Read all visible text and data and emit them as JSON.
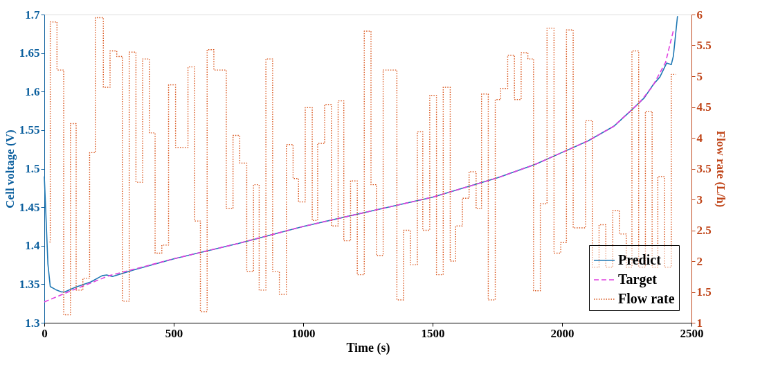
{
  "chart_data": {
    "type": "line",
    "xlabel": "Time (s)",
    "ylabel": "Cell voltage (V)",
    "y2label": "Flow rate (L/h)",
    "xlim": [
      0,
      2500
    ],
    "xticks": [
      0,
      500,
      1000,
      1500,
      2000,
      2500
    ],
    "ylim": [
      1.3,
      1.7
    ],
    "yticks": [
      1.3,
      1.35,
      1.4,
      1.45,
      1.5,
      1.55,
      1.6,
      1.65,
      1.7
    ],
    "y2lim": [
      1,
      6
    ],
    "y2ticks": [
      1,
      1.5,
      2,
      2.5,
      3,
      3.5,
      4,
      4.5,
      5,
      5.5,
      6
    ],
    "grid": false,
    "legend": "bottom right",
    "series": [
      {
        "name": "Predict",
        "line_style": "solid",
        "color": "#1f78b4",
        "x": [
          0,
          5,
          14,
          23,
          44,
          66,
          79,
          120,
          180,
          223,
          241,
          263,
          350,
          500,
          750,
          1000,
          1250,
          1500,
          1750,
          1900,
          2000,
          2100,
          2200,
          2265,
          2318,
          2352,
          2378,
          2404,
          2422,
          2430,
          2446
        ],
        "values": [
          1.49,
          1.45,
          1.376,
          1.347,
          1.343,
          1.34,
          1.34,
          1.346,
          1.353,
          1.361,
          1.362,
          1.36,
          1.369,
          1.383,
          1.403,
          1.425,
          1.444,
          1.463,
          1.488,
          1.506,
          1.521,
          1.536,
          1.555,
          1.575,
          1.592,
          1.609,
          1.619,
          1.637,
          1.635,
          1.646,
          1.698
        ]
      },
      {
        "name": "Target",
        "line_style": "dashed",
        "color": "#e040e0",
        "x": [
          0,
          100,
          250,
          500,
          750,
          1000,
          1250,
          1500,
          1750,
          1900,
          2000,
          2100,
          2200,
          2300,
          2350,
          2400,
          2430
        ],
        "values": [
          1.327,
          1.341,
          1.361,
          1.383,
          1.403,
          1.425,
          1.444,
          1.463,
          1.488,
          1.506,
          1.521,
          1.536,
          1.555,
          1.586,
          1.607,
          1.638,
          1.679
        ]
      },
      {
        "name": "Flow rate",
        "type": "step",
        "axis": "y2",
        "line_style": "dotted",
        "color": "#d95319",
        "x": [
          20,
          23,
          49,
          75,
          101,
          123,
          149,
          175,
          197,
          228,
          254,
          280,
          302,
          328,
          354,
          380,
          406,
          428,
          454,
          480,
          507,
          555,
          581,
          603,
          629,
          655,
          703,
          729,
          755,
          782,
          808,
          830,
          856,
          882,
          908,
          935,
          961,
          982,
          1008,
          1035,
          1056,
          1083,
          1109,
          1135,
          1157,
          1183,
          1209,
          1236,
          1262,
          1283,
          1309,
          1362,
          1388,
          1414,
          1441,
          1462,
          1489,
          1515,
          1541,
          1568,
          1589,
          1615,
          1641,
          1668,
          1689,
          1715,
          1742,
          1763,
          1790,
          1816,
          1842,
          1868,
          1890,
          1916,
          1942,
          1969,
          1995,
          2017,
          2043,
          2091,
          2117,
          2143,
          2169,
          2196,
          2222,
          2248,
          2270,
          2296,
          2322,
          2348,
          2370,
          2396,
          2422,
          2440
        ],
        "values": [
          2.31,
          5.88,
          5.1,
          1.13,
          4.23,
          1.53,
          1.72,
          3.76,
          5.95,
          4.82,
          5.41,
          5.32,
          1.35,
          5.39,
          3.28,
          5.28,
          4.08,
          2.13,
          2.26,
          4.86,
          3.84,
          5.15,
          2.65,
          1.18,
          5.43,
          5.1,
          2.85,
          4.04,
          3.59,
          1.83,
          3.24,
          1.53,
          5.28,
          1.83,
          1.46,
          3.89,
          3.34,
          2.96,
          4.49,
          2.66,
          3.91,
          4.54,
          2.57,
          4.6,
          2.33,
          3.3,
          1.78,
          5.73,
          3.24,
          2.09,
          5.1,
          1.37,
          2.5,
          1.94,
          4.1,
          2.5,
          4.69,
          1.78,
          4.82,
          2.0,
          2.57,
          3.02,
          3.45,
          2.85,
          4.71,
          1.37,
          4.62,
          4.8,
          5.34,
          4.62,
          5.38,
          5.28,
          1.52,
          2.93,
          5.78,
          2.13,
          2.3,
          5.75,
          2.54,
          4.28,
          1.9,
          2.59,
          1.9,
          2.82,
          2.44,
          1.9,
          5.41,
          1.9,
          4.43,
          1.9,
          3.37,
          1.9,
          5.03,
          5.03
        ]
      }
    ]
  }
}
